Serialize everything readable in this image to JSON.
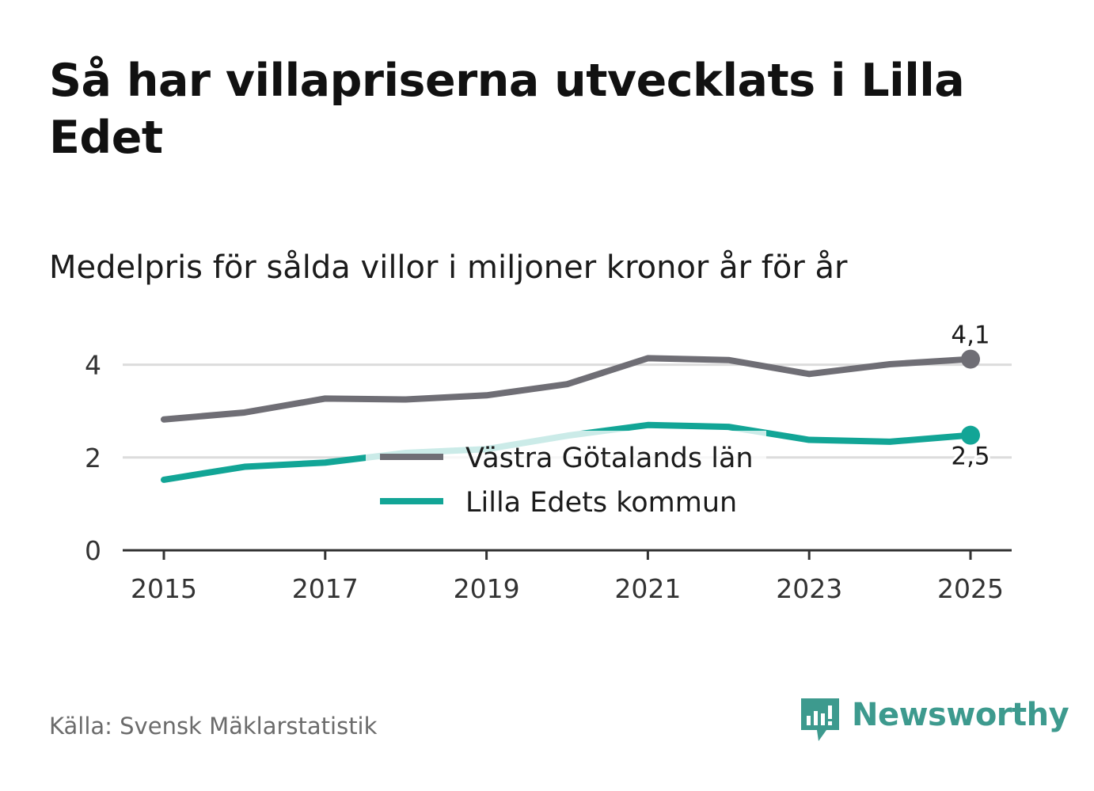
{
  "header": {
    "title": "Så har villapriserna utvecklats i Lilla Edet",
    "subtitle": "Medelpris för sålda villor i miljoner kronor år för år"
  },
  "footer": {
    "source": "Källa: Svensk Mäklarstatistik",
    "brand": "Newsworthy"
  },
  "colors": {
    "region": "#6f6e75",
    "municipality": "#12a596",
    "brand": "#3d9a8e",
    "grid": "#dcdcdc",
    "axis": "#333333"
  },
  "chart_data": {
    "type": "line",
    "title": "Så har villapriserna utvecklats i Lilla Edet",
    "subtitle": "Medelpris för sålda villor i miljoner kronor år för år",
    "xlabel": "",
    "ylabel": "",
    "x": [
      2015,
      2016,
      2017,
      2018,
      2019,
      2020,
      2021,
      2022,
      2023,
      2024,
      2025
    ],
    "x_ticks": [
      "2015",
      "2017",
      "2019",
      "2021",
      "2023",
      "2025"
    ],
    "y_ticks": [
      "0",
      "2",
      "4"
    ],
    "ylim": [
      0,
      4.5
    ],
    "grid": true,
    "legend_position": "center",
    "series": [
      {
        "name": "Västra Götalands län",
        "color": "#6f6e75",
        "values": [
          2.82,
          2.97,
          3.27,
          3.25,
          3.34,
          3.58,
          4.14,
          4.1,
          3.8,
          4.01,
          4.12
        ],
        "end_label": "4,1"
      },
      {
        "name": "Lilla Edets kommun",
        "color": "#12a596",
        "values": [
          1.52,
          1.8,
          1.89,
          2.1,
          2.18,
          2.47,
          2.7,
          2.66,
          2.38,
          2.34,
          2.48
        ],
        "end_label": "2,5"
      }
    ]
  }
}
